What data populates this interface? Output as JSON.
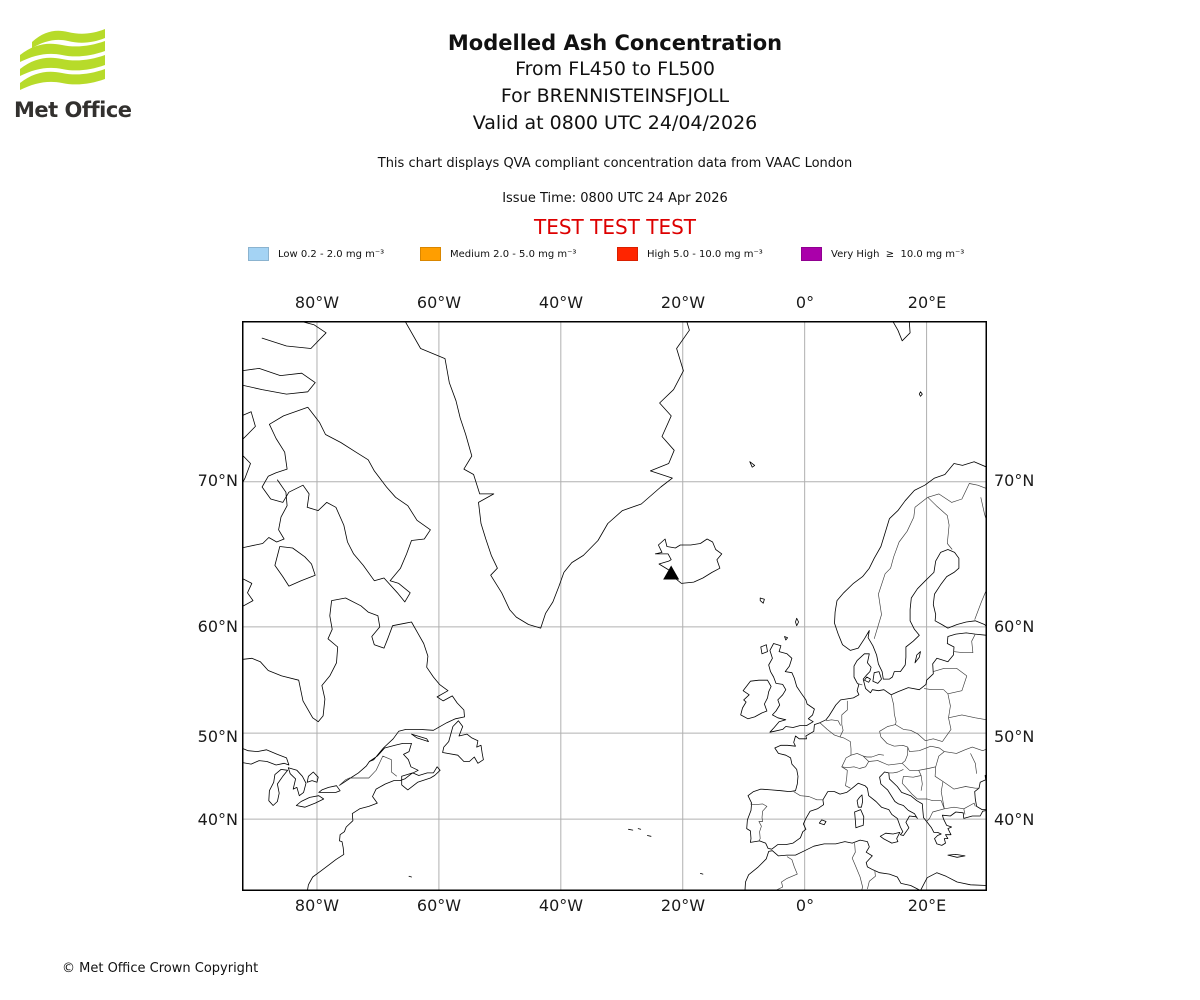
{
  "logo": {
    "brand": "Met Office"
  },
  "colors": {
    "brand_green": "#B7DB2A",
    "test_red": "#DD0000"
  },
  "header": {
    "title": "Modelled Ash Concentration",
    "subtitle_flight_levels": "From FL450 to FL500",
    "subtitle_volcano": "For BRENNISTEINSFJOLL",
    "subtitle_valid": "Valid at 0800 UTC 24/04/2026",
    "description": "This chart displays QVA compliant concentration data from VAAC London",
    "issue_time": "Issue Time: 0800 UTC 24 Apr 2026",
    "test_banner": "TEST TEST TEST"
  },
  "legend": {
    "items": [
      {
        "label": "Low 0.2 - 2.0 mg m⁻³",
        "color": "#A4D3F4"
      },
      {
        "label": "Medium 2.0 - 5.0 mg m⁻³",
        "color": "#FF9E00"
      },
      {
        "label": "High 5.0 - 10.0 mg m⁻³",
        "color": "#FF2500"
      },
      {
        "label": "Very High  ≥  10.0 mg m⁻³",
        "color": "#AA00AA"
      }
    ]
  },
  "map": {
    "x_labels": [
      "80°W",
      "60°W",
      "40°W",
      "20°W",
      "0°",
      "20°E"
    ],
    "y_labels": [
      "70°N",
      "60°N",
      "50°N",
      "40°N"
    ],
    "volcano_marker_icon": "volcano-triangle-icon"
  },
  "footer": {
    "copyright": "© Met Office Crown Copyright"
  }
}
